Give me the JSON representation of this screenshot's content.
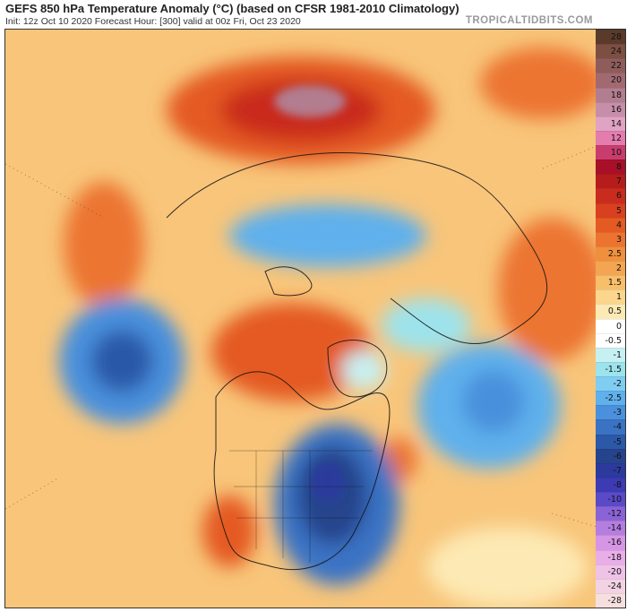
{
  "header": {
    "title": "GEFS 850 hPa Temperature Anomaly (°C) (based on CFSR 1981-2010 Climatology)",
    "subtitle": "Init: 12z Oct 10 2020   Forecast Hour: [300]   valid at 00z Fri, Oct 23 2020",
    "watermark": "TROPICALTIDBITS.COM"
  },
  "colorbar": {
    "levels": [
      {
        "label": "28",
        "color": "#5a3a2a"
      },
      {
        "label": "24",
        "color": "#7d4f43"
      },
      {
        "label": "22",
        "color": "#8e5d5b"
      },
      {
        "label": "20",
        "color": "#a26a70"
      },
      {
        "label": "18",
        "color": "#b27d8f"
      },
      {
        "label": "16",
        "color": "#c68ea8"
      },
      {
        "label": "14",
        "color": "#e0a3c3"
      },
      {
        "label": "12",
        "color": "#e47cae"
      },
      {
        "label": "10",
        "color": "#c93d6e"
      },
      {
        "label": "8",
        "color": "#a8102a"
      },
      {
        "label": "7",
        "color": "#b51c1c"
      },
      {
        "label": "6",
        "color": "#c92c1f"
      },
      {
        "label": "5",
        "color": "#d8401f"
      },
      {
        "label": "4",
        "color": "#e45a22"
      },
      {
        "label": "3",
        "color": "#ec7430"
      },
      {
        "label": "2.5",
        "color": "#f08f3d"
      },
      {
        "label": "2",
        "color": "#f4a552"
      },
      {
        "label": "1.5",
        "color": "#f8bf6b"
      },
      {
        "label": "1",
        "color": "#fbd68c"
      },
      {
        "label": "0.5",
        "color": "#fde9b3"
      },
      {
        "label": "0",
        "color": "#ffffff"
      },
      {
        "label": "-0.5",
        "color": "#ffffff"
      },
      {
        "label": "-1",
        "color": "#c7f0f2"
      },
      {
        "label": "-1.5",
        "color": "#9de3ec"
      },
      {
        "label": "-2",
        "color": "#7fcdf0"
      },
      {
        "label": "-2.5",
        "color": "#5fb0ec"
      },
      {
        "label": "-3",
        "color": "#4a90dc"
      },
      {
        "label": "-4",
        "color": "#3b73c4"
      },
      {
        "label": "-5",
        "color": "#2c58a8"
      },
      {
        "label": "-6",
        "color": "#26448d"
      },
      {
        "label": "-7",
        "color": "#2b3a9c"
      },
      {
        "label": "-8",
        "color": "#3c3bb4"
      },
      {
        "label": "-10",
        "color": "#5a4ac8"
      },
      {
        "label": "-12",
        "color": "#8a63d6"
      },
      {
        "label": "-14",
        "color": "#b47ee0"
      },
      {
        "label": "-16",
        "color": "#d695e5"
      },
      {
        "label": "-18",
        "color": "#e8aee8"
      },
      {
        "label": "-20",
        "color": "#efc2e8"
      },
      {
        "label": "-24",
        "color": "#f3d2e3"
      },
      {
        "label": "-28",
        "color": "#f7dfe0"
      }
    ]
  }
}
